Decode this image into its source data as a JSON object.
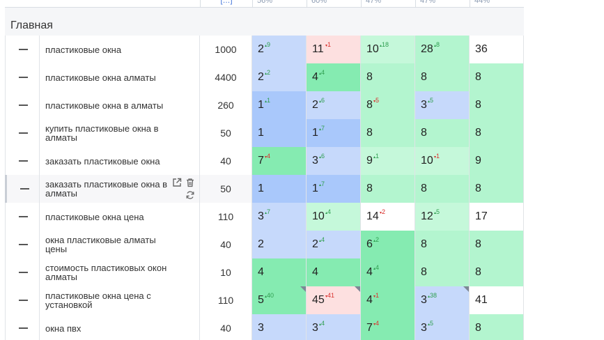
{
  "header": {
    "cells": [
      "[…]",
      "56%",
      "60%",
      "47%",
      "47%",
      "44%"
    ]
  },
  "group": {
    "title": "Главная"
  },
  "rows": [
    {
      "keyword": "пластиковые окна",
      "freq": "1000",
      "positions": [
        {
          "v": "2",
          "d": "9",
          "dir": "up",
          "bg": "blue"
        },
        {
          "v": "11",
          "d": "1",
          "dir": "down",
          "bg": "pink"
        },
        {
          "v": "10",
          "d": "18",
          "dir": "up",
          "bg": "green3"
        },
        {
          "v": "28",
          "d": "8",
          "dir": "up",
          "bg": "green"
        },
        {
          "v": "36",
          "d": "",
          "dir": "",
          "bg": "white"
        }
      ]
    },
    {
      "keyword": "пластиковые окна алматы",
      "freq": "4400",
      "positions": [
        {
          "v": "2",
          "d": "2",
          "dir": "up",
          "bg": "blue"
        },
        {
          "v": "4",
          "d": "4",
          "dir": "up",
          "bg": "green2"
        },
        {
          "v": "8",
          "d": "",
          "dir": "",
          "bg": "green"
        },
        {
          "v": "8",
          "d": "",
          "dir": "",
          "bg": "green"
        },
        {
          "v": "8",
          "d": "",
          "dir": "",
          "bg": "green"
        }
      ]
    },
    {
      "keyword": "пластиковые окна в алматы",
      "freq": "260",
      "positions": [
        {
          "v": "1",
          "d": "1",
          "dir": "up",
          "bg": "blue2"
        },
        {
          "v": "2",
          "d": "6",
          "dir": "up",
          "bg": "blue"
        },
        {
          "v": "8",
          "d": "5",
          "dir": "down",
          "bg": "green"
        },
        {
          "v": "3",
          "d": "5",
          "dir": "up",
          "bg": "blue"
        },
        {
          "v": "8",
          "d": "",
          "dir": "",
          "bg": "green"
        }
      ]
    },
    {
      "keyword": "купить пластиковые окна в алматы",
      "freq": "50",
      "positions": [
        {
          "v": "1",
          "d": "",
          "dir": "",
          "bg": "blue2"
        },
        {
          "v": "1",
          "d": "7",
          "dir": "up",
          "bg": "blue2"
        },
        {
          "v": "8",
          "d": "",
          "dir": "",
          "bg": "green"
        },
        {
          "v": "8",
          "d": "",
          "dir": "",
          "bg": "green"
        },
        {
          "v": "8",
          "d": "",
          "dir": "",
          "bg": "green"
        }
      ]
    },
    {
      "keyword": "заказать пластиковые окна",
      "freq": "40",
      "positions": [
        {
          "v": "7",
          "d": "4",
          "dir": "down",
          "bg": "green2"
        },
        {
          "v": "3",
          "d": "6",
          "dir": "up",
          "bg": "blue"
        },
        {
          "v": "9",
          "d": "1",
          "dir": "up",
          "bg": "green3"
        },
        {
          "v": "10",
          "d": "1",
          "dir": "down",
          "bg": "green3"
        },
        {
          "v": "9",
          "d": "",
          "dir": "",
          "bg": "green"
        }
      ]
    },
    {
      "keyword": "заказать пластиковые окна в алматы",
      "freq": "50",
      "hover": true,
      "positions": [
        {
          "v": "1",
          "d": "",
          "dir": "",
          "bg": "blue2"
        },
        {
          "v": "1",
          "d": "7",
          "dir": "up",
          "bg": "blue2"
        },
        {
          "v": "8",
          "d": "",
          "dir": "",
          "bg": "green"
        },
        {
          "v": "8",
          "d": "",
          "dir": "",
          "bg": "green"
        },
        {
          "v": "8",
          "d": "",
          "dir": "",
          "bg": "green"
        }
      ]
    },
    {
      "keyword": "пластиковые окна цена",
      "freq": "110",
      "positions": [
        {
          "v": "3",
          "d": "7",
          "dir": "up",
          "bg": "blue"
        },
        {
          "v": "10",
          "d": "4",
          "dir": "up",
          "bg": "green3"
        },
        {
          "v": "14",
          "d": "2",
          "dir": "down",
          "bg": "white"
        },
        {
          "v": "12",
          "d": "5",
          "dir": "up",
          "bg": "green3"
        },
        {
          "v": "17",
          "d": "",
          "dir": "",
          "bg": "white"
        }
      ]
    },
    {
      "keyword": "окна пластиковые алматы цены",
      "freq": "40",
      "positions": [
        {
          "v": "2",
          "d": "",
          "dir": "",
          "bg": "blue"
        },
        {
          "v": "2",
          "d": "4",
          "dir": "up",
          "bg": "blue"
        },
        {
          "v": "6",
          "d": "2",
          "dir": "up",
          "bg": "green2"
        },
        {
          "v": "8",
          "d": "",
          "dir": "",
          "bg": "green"
        },
        {
          "v": "8",
          "d": "",
          "dir": "",
          "bg": "green"
        }
      ]
    },
    {
      "keyword": "стоимость пластиковых окон алматы",
      "freq": "10",
      "positions": [
        {
          "v": "4",
          "d": "",
          "dir": "",
          "bg": "green2"
        },
        {
          "v": "4",
          "d": "",
          "dir": "",
          "bg": "green2"
        },
        {
          "v": "4",
          "d": "4",
          "dir": "up",
          "bg": "green2"
        },
        {
          "v": "8",
          "d": "",
          "dir": "",
          "bg": "green"
        },
        {
          "v": "8",
          "d": "",
          "dir": "",
          "bg": "green"
        }
      ]
    },
    {
      "keyword": "пластиковые окна цена с установкой",
      "freq": "110",
      "positions": [
        {
          "v": "5",
          "d": "40",
          "dir": "up",
          "bg": "green2",
          "corner": true
        },
        {
          "v": "45",
          "d": "41",
          "dir": "down",
          "bg": "pink",
          "corner": true
        },
        {
          "v": "4",
          "d": "1",
          "dir": "down",
          "bg": "green2"
        },
        {
          "v": "3",
          "d": "38",
          "dir": "up",
          "bg": "blue",
          "corner": true
        },
        {
          "v": "41",
          "d": "",
          "dir": "",
          "bg": "white"
        }
      ]
    },
    {
      "keyword": "окна пвх",
      "freq": "40",
      "positions": [
        {
          "v": "3",
          "d": "",
          "dir": "",
          "bg": "blue"
        },
        {
          "v": "3",
          "d": "4",
          "dir": "up",
          "bg": "blue"
        },
        {
          "v": "7",
          "d": "4",
          "dir": "down",
          "bg": "green2"
        },
        {
          "v": "3",
          "d": "5",
          "dir": "up",
          "bg": "blue"
        },
        {
          "v": "8",
          "d": "",
          "dir": "",
          "bg": "green"
        }
      ]
    }
  ],
  "icons": {
    "open": "external-link-icon",
    "delete": "trash-icon",
    "refresh": "refresh-icon",
    "collapse": "minus-icon"
  }
}
